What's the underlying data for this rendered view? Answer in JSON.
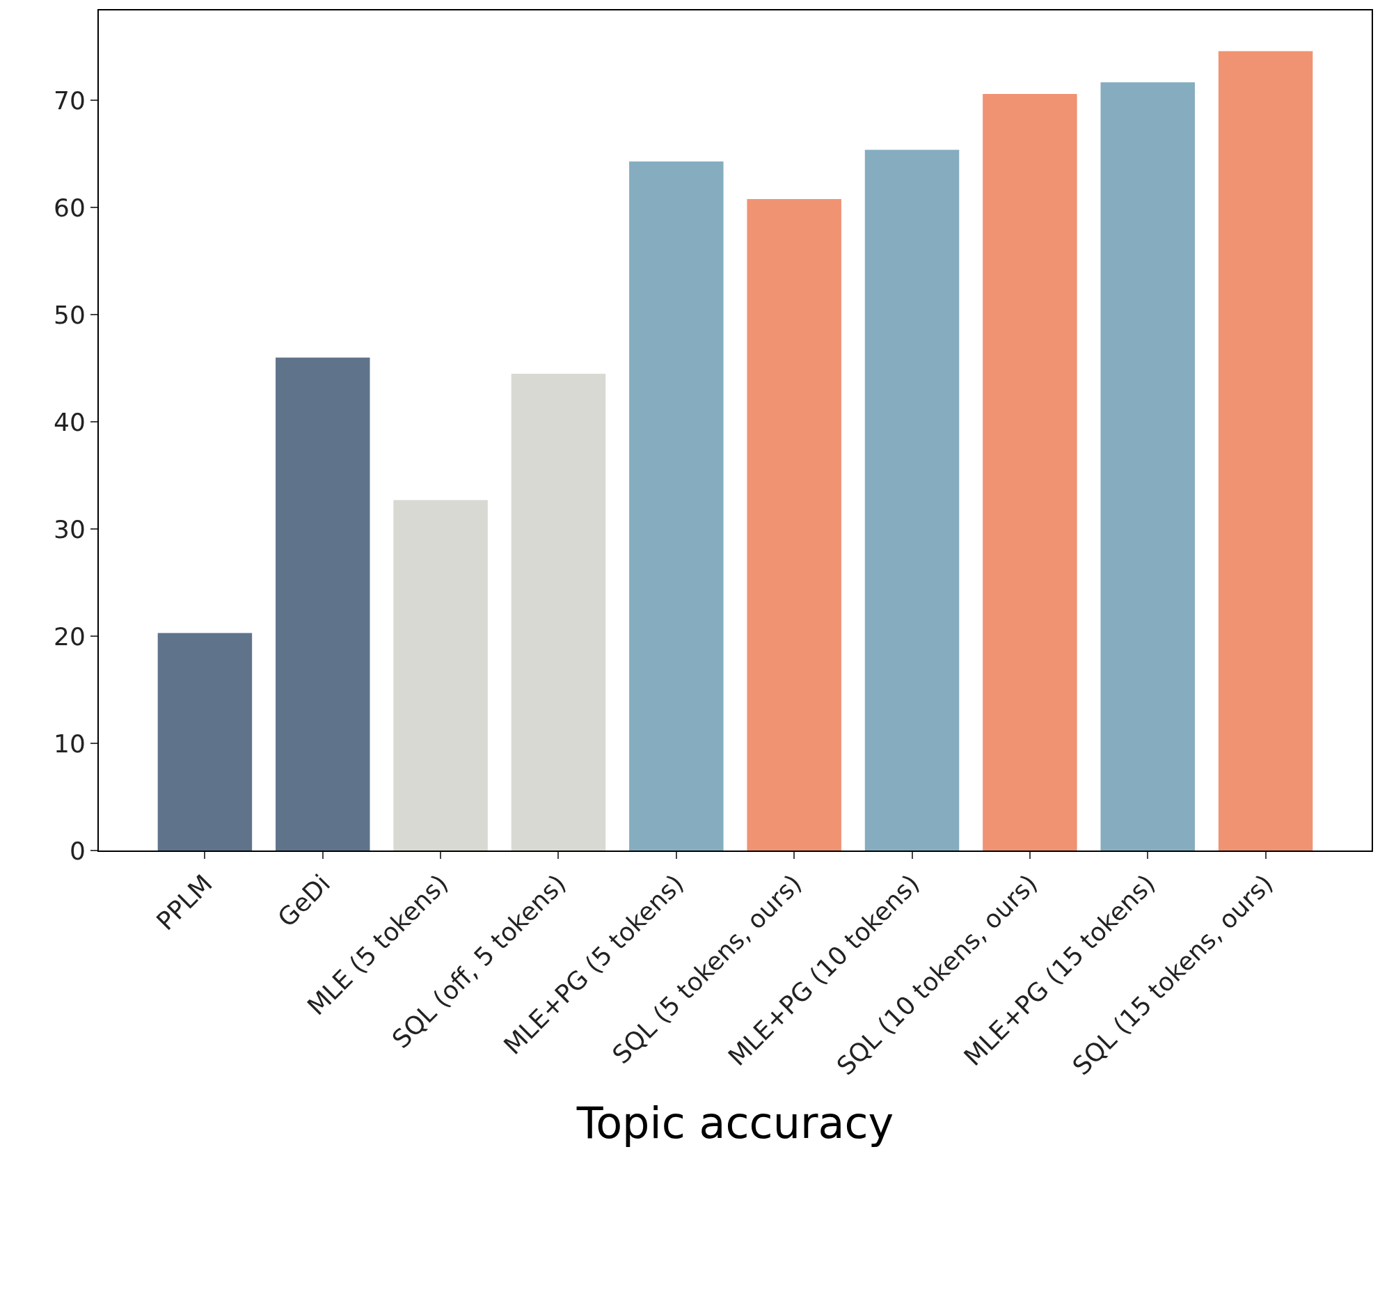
{
  "chart_data": {
    "type": "bar",
    "xlabel": "Topic accuracy",
    "categories": [
      "PPLM",
      "GeDi",
      "MLE (5 tokens)",
      "SQL (off, 5 tokens)",
      "MLE+PG (5 tokens)",
      "SQL (5 tokens, ours)",
      "MLE+PG (10 tokens)",
      "SQL (10 tokens, ours)",
      "MLE+PG (15 tokens)",
      "SQL (15 tokens, ours)"
    ],
    "values": [
      20.3,
      46.0,
      32.7,
      44.5,
      64.3,
      60.8,
      65.4,
      70.6,
      71.7,
      74.6
    ],
    "colors": [
      "#5f748b",
      "#5f748b",
      "#d8d9d3",
      "#d8d9d3",
      "#85adbf",
      "#ef9373",
      "#85adbf",
      "#ef9373",
      "#85adbf",
      "#ef9373"
    ],
    "ylim": [
      0,
      78.4
    ],
    "yticks": [
      0,
      10,
      20,
      30,
      40,
      50,
      60,
      70
    ]
  }
}
